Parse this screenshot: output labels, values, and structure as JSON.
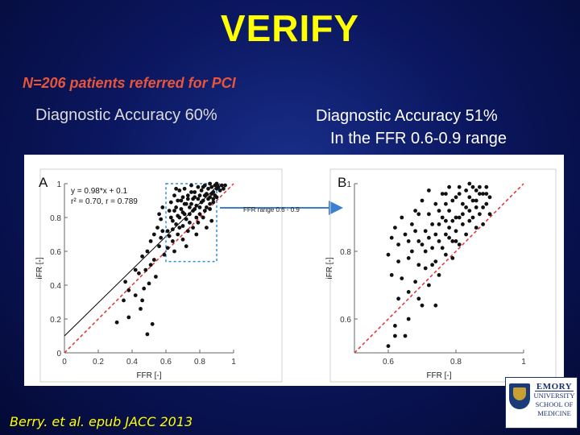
{
  "slide": {
    "title": "VERIFY",
    "subtitle": "N=206 patients referred for PCI",
    "accuracy_left": "Diagnostic  Accuracy 60%",
    "accuracy_right_line1": "Diagnostic  Accuracy 51%",
    "accuracy_right_line2": "In the FFR 0.6-0.9 range",
    "citation": "Berry. et al. epub JACC 2013",
    "logo": {
      "line1": "EMORY",
      "line2": "UNIVERSITY",
      "line3": "SCHOOL OF",
      "line4": "MEDICINE"
    }
  },
  "colors": {
    "title": "#ffff00",
    "subtitle": "#e8553a",
    "identity_line": "#e03030",
    "regression_line": "#000000",
    "highlight_box": "#2a8fd8",
    "arrow": "#3a7fd0",
    "point": "#111111"
  },
  "chart_data": [
    {
      "type": "scatter",
      "panel_label": "A",
      "xlabel": "FFR [-]",
      "ylabel": "iFR [-]",
      "xlim": [
        0,
        1
      ],
      "ylim": [
        0,
        1
      ],
      "xticks": [
        "0",
        "0.2",
        "0.4",
        "0.6",
        "0.8",
        "1"
      ],
      "yticks": [
        "0",
        "0.2",
        "0.4",
        "0.6",
        "0.8",
        "1"
      ],
      "annotations": [
        "y = 0.98*x + 0.1",
        "r² = 0.70, r = 0.789"
      ],
      "regression": {
        "slope": 0.98,
        "intercept": 0.1
      },
      "identity_line": true,
      "highlight_box": {
        "x": [
          0.6,
          0.9
        ],
        "y": [
          0.54,
          1.0
        ]
      },
      "arrow_label": "FFR range 0.6 - 0.9",
      "points": [
        [
          0.31,
          0.18
        ],
        [
          0.35,
          0.31
        ],
        [
          0.36,
          0.42
        ],
        [
          0.38,
          0.21
        ],
        [
          0.42,
          0.34
        ],
        [
          0.44,
          0.47
        ],
        [
          0.45,
          0.26
        ],
        [
          0.46,
          0.31
        ],
        [
          0.47,
          0.38
        ],
        [
          0.48,
          0.49
        ],
        [
          0.49,
          0.11
        ],
        [
          0.5,
          0.41
        ],
        [
          0.51,
          0.52
        ],
        [
          0.52,
          0.17
        ],
        [
          0.53,
          0.55
        ],
        [
          0.54,
          0.45
        ],
        [
          0.56,
          0.63
        ],
        [
          0.57,
          0.68
        ],
        [
          0.58,
          0.72
        ],
        [
          0.59,
          0.58
        ],
        [
          0.46,
          0.57
        ],
        [
          0.51,
          0.66
        ],
        [
          0.55,
          0.74
        ],
        [
          0.57,
          0.79
        ],
        [
          0.42,
          0.49
        ],
        [
          0.38,
          0.37
        ],
        [
          0.49,
          0.6
        ],
        [
          0.53,
          0.7
        ],
        [
          0.56,
          0.82
        ],
        [
          0.58,
          0.86
        ],
        [
          0.61,
          0.72
        ],
        [
          0.62,
          0.84
        ],
        [
          0.63,
          0.89
        ],
        [
          0.64,
          0.78
        ],
        [
          0.65,
          0.93
        ],
        [
          0.66,
          0.86
        ],
        [
          0.67,
          0.81
        ],
        [
          0.68,
          0.96
        ],
        [
          0.69,
          0.9
        ],
        [
          0.7,
          0.83
        ],
        [
          0.71,
          0.97
        ],
        [
          0.72,
          0.88
        ],
        [
          0.73,
          0.93
        ],
        [
          0.74,
          0.86
        ],
        [
          0.75,
          0.99
        ],
        [
          0.76,
          0.91
        ],
        [
          0.77,
          0.95
        ],
        [
          0.78,
          0.87
        ],
        [
          0.79,
          0.98
        ],
        [
          0.8,
          0.93
        ],
        [
          0.81,
          0.96
        ],
        [
          0.82,
          0.9
        ],
        [
          0.83,
          0.99
        ],
        [
          0.84,
          0.94
        ],
        [
          0.85,
          0.97
        ],
        [
          0.86,
          0.92
        ],
        [
          0.87,
          0.98
        ],
        [
          0.88,
          0.95
        ],
        [
          0.89,
          0.99
        ],
        [
          0.9,
          0.97
        ],
        [
          0.62,
          0.69
        ],
        [
          0.64,
          0.73
        ],
        [
          0.66,
          0.76
        ],
        [
          0.68,
          0.8
        ],
        [
          0.7,
          0.75
        ],
        [
          0.72,
          0.79
        ],
        [
          0.74,
          0.82
        ],
        [
          0.76,
          0.84
        ],
        [
          0.78,
          0.8
        ],
        [
          0.8,
          0.86
        ],
        [
          0.63,
          0.8
        ],
        [
          0.65,
          0.84
        ],
        [
          0.67,
          0.9
        ],
        [
          0.69,
          0.85
        ],
        [
          0.71,
          0.88
        ],
        [
          0.73,
          0.91
        ],
        [
          0.75,
          0.88
        ],
        [
          0.77,
          0.92
        ],
        [
          0.79,
          0.91
        ],
        [
          0.81,
          0.89
        ],
        [
          0.83,
          0.93
        ],
        [
          0.85,
          0.91
        ],
        [
          0.87,
          0.94
        ],
        [
          0.89,
          0.93
        ],
        [
          0.91,
          0.98
        ],
        [
          0.92,
          0.96
        ],
        [
          0.93,
          0.99
        ],
        [
          0.94,
          0.97
        ],
        [
          0.95,
          0.99
        ],
        [
          0.9,
          1.0
        ],
        [
          0.61,
          0.62
        ],
        [
          0.64,
          0.66
        ],
        [
          0.67,
          0.7
        ],
        [
          0.7,
          0.67
        ],
        [
          0.73,
          0.72
        ],
        [
          0.76,
          0.74
        ],
        [
          0.79,
          0.77
        ],
        [
          0.82,
          0.8
        ],
        [
          0.86,
          0.85
        ],
        [
          0.88,
          0.89
        ],
        [
          0.65,
          0.6
        ],
        [
          0.72,
          0.63
        ],
        [
          0.78,
          0.7
        ],
        [
          0.84,
          0.74
        ],
        [
          0.87,
          0.78
        ],
        [
          0.75,
          0.95
        ],
        [
          0.7,
          0.92
        ],
        [
          0.66,
          0.97
        ],
        [
          0.82,
          0.98
        ],
        [
          0.86,
          1.0
        ],
        [
          0.68,
          0.74
        ],
        [
          0.74,
          0.77
        ],
        [
          0.8,
          0.82
        ],
        [
          0.84,
          0.86
        ],
        [
          0.71,
          0.82
        ],
        [
          0.77,
          0.85
        ],
        [
          0.83,
          0.84
        ],
        [
          0.86,
          0.88
        ],
        [
          0.88,
          0.91
        ],
        [
          0.9,
          0.92
        ]
      ]
    },
    {
      "type": "scatter",
      "panel_label": "B",
      "xlabel": "FFR [-]",
      "ylabel": "iFR [-]",
      "xlim": [
        0.5,
        1.0
      ],
      "ylim": [
        0.5,
        1.0
      ],
      "xticks": [
        "0.6",
        "0.8",
        "1"
      ],
      "yticks": [
        "0.6",
        "0.8",
        "1"
      ],
      "identity_line": true,
      "points": [
        [
          0.6,
          0.52
        ],
        [
          0.62,
          0.58
        ],
        [
          0.63,
          0.66
        ],
        [
          0.6,
          0.79
        ],
        [
          0.61,
          0.84
        ],
        [
          0.62,
          0.87
        ],
        [
          0.63,
          0.82
        ],
        [
          0.64,
          0.9
        ],
        [
          0.65,
          0.85
        ],
        [
          0.66,
          0.78
        ],
        [
          0.67,
          0.88
        ],
        [
          0.68,
          0.92
        ],
        [
          0.69,
          0.83
        ],
        [
          0.7,
          0.95
        ],
        [
          0.71,
          0.86
        ],
        [
          0.72,
          0.91
        ],
        [
          0.73,
          0.81
        ],
        [
          0.74,
          0.94
        ],
        [
          0.75,
          0.88
        ],
        [
          0.76,
          0.97
        ],
        [
          0.77,
          0.85
        ],
        [
          0.78,
          0.92
        ],
        [
          0.79,
          0.89
        ],
        [
          0.8,
          0.96
        ],
        [
          0.81,
          0.9
        ],
        [
          0.82,
          0.94
        ],
        [
          0.83,
          0.98
        ],
        [
          0.84,
          0.92
        ],
        [
          0.85,
          0.99
        ],
        [
          0.86,
          0.95
        ],
        [
          0.87,
          0.97
        ],
        [
          0.88,
          0.93
        ],
        [
          0.89,
          0.99
        ],
        [
          0.9,
          0.96
        ],
        [
          0.65,
          0.55
        ],
        [
          0.66,
          0.68
        ],
        [
          0.68,
          0.71
        ],
        [
          0.7,
          0.64
        ],
        [
          0.71,
          0.75
        ],
        [
          0.72,
          0.7
        ],
        [
          0.74,
          0.77
        ],
        [
          0.75,
          0.73
        ],
        [
          0.77,
          0.79
        ],
        [
          0.78,
          0.84
        ],
        [
          0.79,
          0.78
        ],
        [
          0.8,
          0.86
        ],
        [
          0.81,
          0.82
        ],
        [
          0.82,
          0.88
        ],
        [
          0.83,
          0.85
        ],
        [
          0.84,
          0.89
        ],
        [
          0.85,
          0.9
        ],
        [
          0.86,
          0.87
        ],
        [
          0.87,
          0.91
        ],
        [
          0.88,
          0.88
        ],
        [
          0.89,
          0.94
        ],
        [
          0.9,
          0.91
        ],
        [
          0.64,
          0.72
        ],
        [
          0.67,
          0.8
        ],
        [
          0.69,
          0.91
        ],
        [
          0.72,
          0.98
        ],
        [
          0.74,
          0.85
        ],
        [
          0.76,
          0.9
        ],
        [
          0.73,
          0.88
        ],
        [
          0.75,
          0.92
        ],
        [
          0.77,
          0.94
        ],
        [
          0.79,
          0.95
        ],
        [
          0.81,
          0.97
        ],
        [
          0.83,
          0.93
        ],
        [
          0.85,
          0.95
        ],
        [
          0.87,
          0.99
        ],
        [
          0.7,
          0.82
        ],
        [
          0.71,
          0.8
        ],
        [
          0.73,
          0.76
        ],
        [
          0.76,
          0.81
        ],
        [
          0.78,
          0.87
        ],
        [
          0.8,
          0.83
        ],
        [
          0.82,
          0.91
        ],
        [
          0.84,
          0.96
        ],
        [
          0.86,
          0.93
        ],
        [
          0.88,
          0.97
        ],
        [
          0.61,
          0.73
        ],
        [
          0.63,
          0.77
        ],
        [
          0.66,
          0.83
        ],
        [
          0.68,
          0.86
        ],
        [
          0.69,
          0.76
        ],
        [
          0.72,
          0.84
        ],
        [
          0.75,
          0.83
        ],
        [
          0.77,
          0.89
        ],
        [
          0.79,
          0.83
        ],
        [
          0.8,
          0.9
        ],
        [
          0.66,
          0.6
        ],
        [
          0.69,
          0.66
        ],
        [
          0.74,
          0.64
        ],
        [
          0.62,
          0.55
        ],
        [
          0.77,
          0.97
        ],
        [
          0.81,
          0.99
        ],
        [
          0.84,
          1.0
        ],
        [
          0.78,
          0.99
        ],
        [
          0.86,
          0.98
        ],
        [
          0.89,
          0.97
        ]
      ]
    }
  ]
}
